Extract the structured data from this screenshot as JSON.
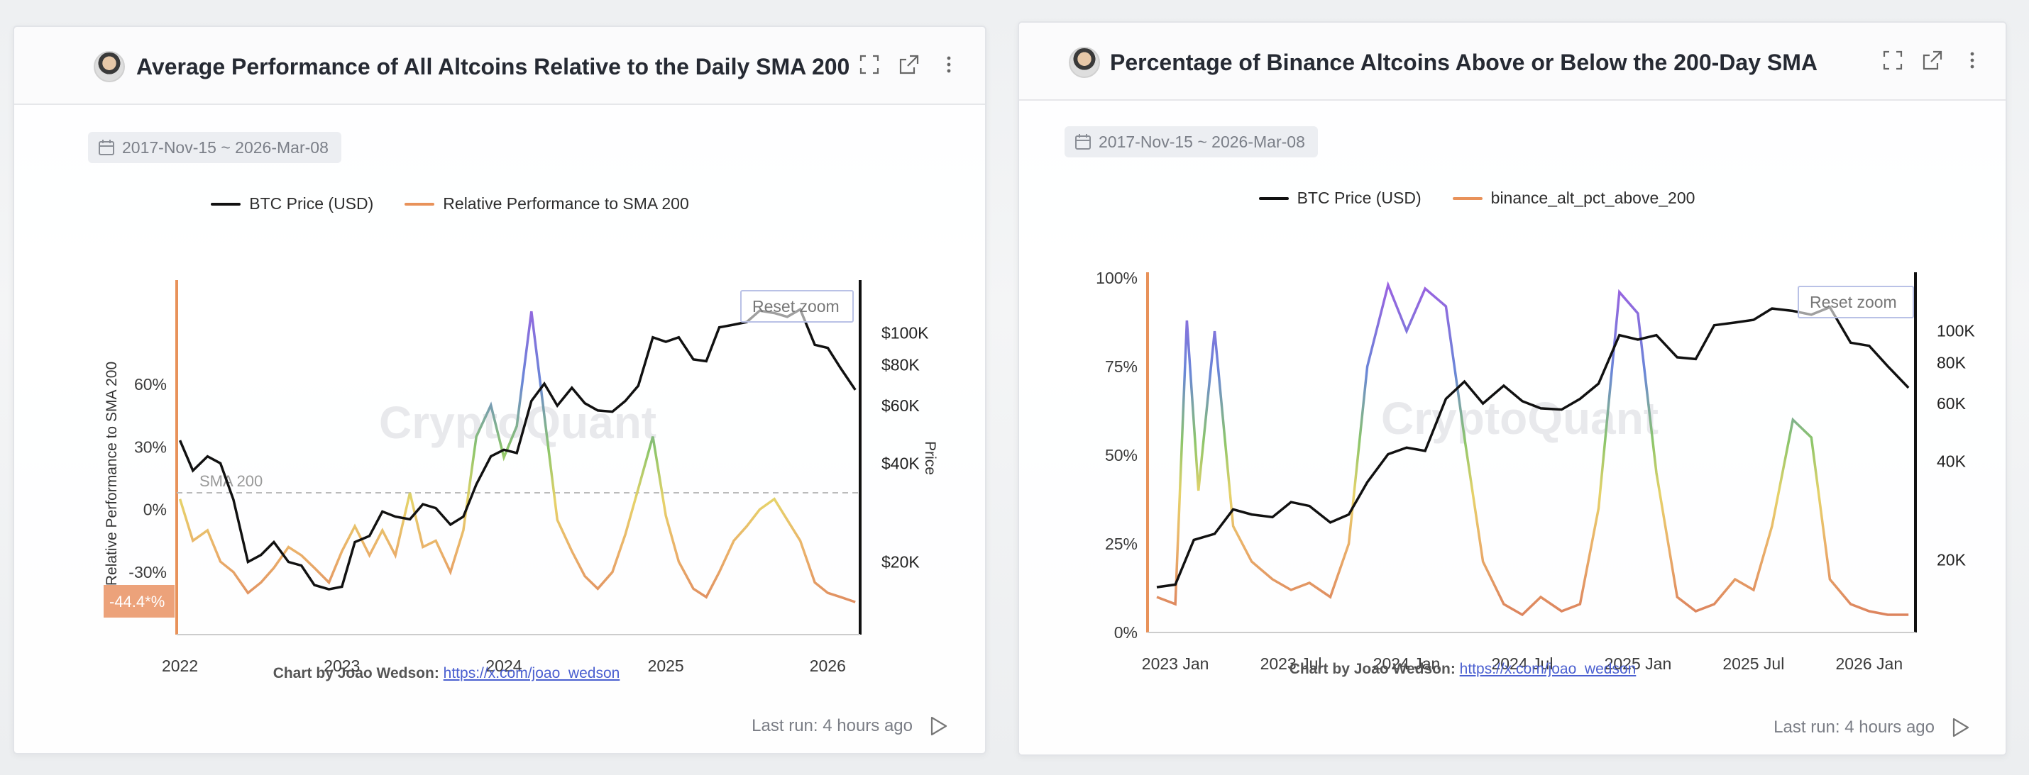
{
  "cards": [
    {
      "title": "Average Performance of All Altcoins Relative to the Daily SMA 200",
      "date_range": "2017-Nov-15 ~ 2026-Mar-08",
      "credit_label": "Chart by Joao Wedson:",
      "credit_link": "https://x.com/joao_wedson",
      "last_run": "Last run: 4 hours ago",
      "reset_zoom": "Reset zoom",
      "watermark": "CryptoQuant"
    },
    {
      "title": "Percentage of Binance Altcoins Above or Below the 200-Day SMA",
      "date_range": "2017-Nov-15 ~ 2026-Mar-08",
      "credit_label": "Chart by Joao Wedson:",
      "credit_link": "https://x.com/joao_wedson",
      "last_run": "Last run: 4 hours ago",
      "reset_zoom": "Reset zoom",
      "watermark": "CryptoQuant"
    }
  ],
  "chart_data": [
    {
      "type": "line",
      "series": [
        {
          "name": "BTC Price (USD)",
          "color": "#111111",
          "axis": "right",
          "x": [
            2022.0,
            2022.08,
            2022.17,
            2022.25,
            2022.33,
            2022.42,
            2022.5,
            2022.58,
            2022.67,
            2022.75,
            2022.83,
            2022.92,
            2023.0,
            2023.08,
            2023.17,
            2023.25,
            2023.33,
            2023.42,
            2023.5,
            2023.58,
            2023.67,
            2023.75,
            2023.83,
            2023.92,
            2024.0,
            2024.08,
            2024.17,
            2024.25,
            2024.33,
            2024.42,
            2024.5,
            2024.58,
            2024.67,
            2024.75,
            2024.83,
            2024.92,
            2025.0,
            2025.08,
            2025.17,
            2025.25,
            2025.33,
            2025.42,
            2025.5,
            2025.58,
            2025.67,
            2025.75,
            2025.83,
            2025.92,
            2026.0,
            2026.08,
            2026.17
          ],
          "values": [
            47000,
            38000,
            42000,
            40000,
            31000,
            20000,
            21000,
            23000,
            20000,
            19500,
            17000,
            16500,
            16800,
            23000,
            24000,
            28500,
            27500,
            27000,
            30000,
            29200,
            26000,
            27500,
            34500,
            42000,
            44000,
            43000,
            62000,
            70000,
            60000,
            68000,
            61000,
            58000,
            57500,
            62000,
            69000,
            97000,
            94000,
            97000,
            83000,
            82000,
            104000,
            106000,
            108000,
            117000,
            115000,
            112000,
            118000,
            92000,
            90000,
            78000,
            67000
          ]
        },
        {
          "name": "Relative Performance to SMA 200",
          "color": "#e8925a",
          "axis": "left",
          "x": [
            2022.0,
            2022.08,
            2022.17,
            2022.25,
            2022.33,
            2022.42,
            2022.5,
            2022.58,
            2022.67,
            2022.75,
            2022.83,
            2022.92,
            2023.0,
            2023.08,
            2023.17,
            2023.25,
            2023.33,
            2023.42,
            2023.5,
            2023.58,
            2023.67,
            2023.75,
            2023.83,
            2023.92,
            2024.0,
            2024.08,
            2024.17,
            2024.25,
            2024.33,
            2024.42,
            2024.5,
            2024.58,
            2024.67,
            2024.75,
            2024.83,
            2024.92,
            2025.0,
            2025.08,
            2025.17,
            2025.25,
            2025.33,
            2025.42,
            2025.5,
            2025.58,
            2025.67,
            2025.75,
            2025.83,
            2025.92,
            2026.0,
            2026.08,
            2026.17
          ],
          "values": [
            5,
            -15,
            -10,
            -25,
            -30,
            -40,
            -35,
            -28,
            -18,
            -22,
            -28,
            -35,
            -20,
            -8,
            -22,
            -10,
            -22,
            8,
            -18,
            -15,
            -30,
            -10,
            35,
            50,
            25,
            40,
            95,
            45,
            -5,
            -20,
            -32,
            -38,
            -30,
            -12,
            10,
            35,
            -3,
            -25,
            -38,
            -42,
            -30,
            -15,
            -8,
            0,
            5,
            -5,
            -15,
            -35,
            -40,
            -42,
            -44.4
          ]
        }
      ],
      "ylabel": "Relative Performance to SMA 200",
      "y2label": "Price",
      "xlim": [
        2021.98,
        2026.2
      ],
      "ylim": [
        -60,
        110
      ],
      "x_ticks": [
        "2022",
        "2023",
        "2024",
        "2025",
        "2026"
      ],
      "y_ticks": [
        "60%",
        "30%",
        "0%",
        "-30%"
      ],
      "y_tick_values": [
        60,
        30,
        0,
        -30
      ],
      "y2_ticks": [
        "$100K",
        "$80K",
        "$60K",
        "$40K",
        "$20K"
      ],
      "y2_tick_values": [
        100000,
        80000,
        60000,
        40000,
        20000
      ],
      "y2lim": [
        12000,
        145000
      ],
      "y2_scale": "log",
      "reference_line": {
        "label": "SMA 200",
        "value": 0
      },
      "last_value_label": "-44.4*%",
      "grid": false,
      "legend": "top-center"
    },
    {
      "type": "line",
      "series": [
        {
          "name": "BTC Price (USD)",
          "color": "#111111",
          "axis": "right",
          "x": [
            2022.92,
            2023.0,
            2023.08,
            2023.17,
            2023.25,
            2023.33,
            2023.42,
            2023.5,
            2023.58,
            2023.67,
            2023.75,
            2023.83,
            2023.92,
            2024.0,
            2024.08,
            2024.17,
            2024.25,
            2024.33,
            2024.42,
            2024.5,
            2024.58,
            2024.67,
            2024.75,
            2024.83,
            2024.92,
            2025.0,
            2025.08,
            2025.17,
            2025.25,
            2025.33,
            2025.42,
            2025.5,
            2025.58,
            2025.67,
            2025.75,
            2025.83,
            2025.92,
            2026.0,
            2026.08,
            2026.17
          ],
          "values": [
            16500,
            16800,
            23000,
            24000,
            28500,
            27500,
            27000,
            30000,
            29200,
            26000,
            27500,
            34500,
            42000,
            44000,
            43000,
            62000,
            70000,
            60000,
            68000,
            61000,
            58000,
            57500,
            62000,
            69000,
            97000,
            94000,
            97000,
            83000,
            82000,
            104000,
            106000,
            108000,
            117000,
            115000,
            112000,
            118000,
            92000,
            90000,
            78000,
            67000
          ]
        },
        {
          "name": "binance_alt_pct_above_200",
          "color": "#e8925a",
          "axis": "left",
          "x": [
            2022.92,
            2023.0,
            2023.05,
            2023.1,
            2023.17,
            2023.25,
            2023.33,
            2023.42,
            2023.5,
            2023.58,
            2023.67,
            2023.75,
            2023.83,
            2023.92,
            2024.0,
            2024.08,
            2024.17,
            2024.25,
            2024.33,
            2024.42,
            2024.5,
            2024.58,
            2024.67,
            2024.75,
            2024.83,
            2024.92,
            2025.0,
            2025.08,
            2025.17,
            2025.25,
            2025.33,
            2025.42,
            2025.5,
            2025.58,
            2025.67,
            2025.75,
            2025.83,
            2025.92,
            2026.0,
            2026.08,
            2026.17
          ],
          "values": [
            10,
            8,
            88,
            40,
            85,
            30,
            20,
            15,
            12,
            14,
            10,
            25,
            75,
            98,
            85,
            97,
            92,
            55,
            20,
            8,
            5,
            10,
            6,
            8,
            35,
            96,
            90,
            45,
            10,
            6,
            8,
            15,
            12,
            30,
            60,
            55,
            15,
            8,
            6,
            5,
            5
          ]
        }
      ],
      "xlim": [
        2022.88,
        2026.2
      ],
      "ylim": [
        0,
        100
      ],
      "x_ticks": [
        "2023 Jan",
        "2023 Jul",
        "2024 Jan",
        "2024 Jul",
        "2025 Jan",
        "2025 Jul",
        "2026 Jan"
      ],
      "x_tick_values": [
        2023.0,
        2023.5,
        2024.0,
        2024.5,
        2025.0,
        2025.5,
        2026.0
      ],
      "y_ticks": [
        "100%",
        "75%",
        "50%",
        "25%",
        "0%"
      ],
      "y_tick_values": [
        100,
        75,
        50,
        25,
        0
      ],
      "y2_ticks": [
        "100K",
        "80K",
        "60K",
        "40K",
        "20K"
      ],
      "y2_tick_values": [
        100000,
        80000,
        60000,
        40000,
        20000
      ],
      "y2lim": [
        12000,
        145000
      ],
      "y2_scale": "log",
      "grid": false,
      "legend": "top-center"
    }
  ]
}
